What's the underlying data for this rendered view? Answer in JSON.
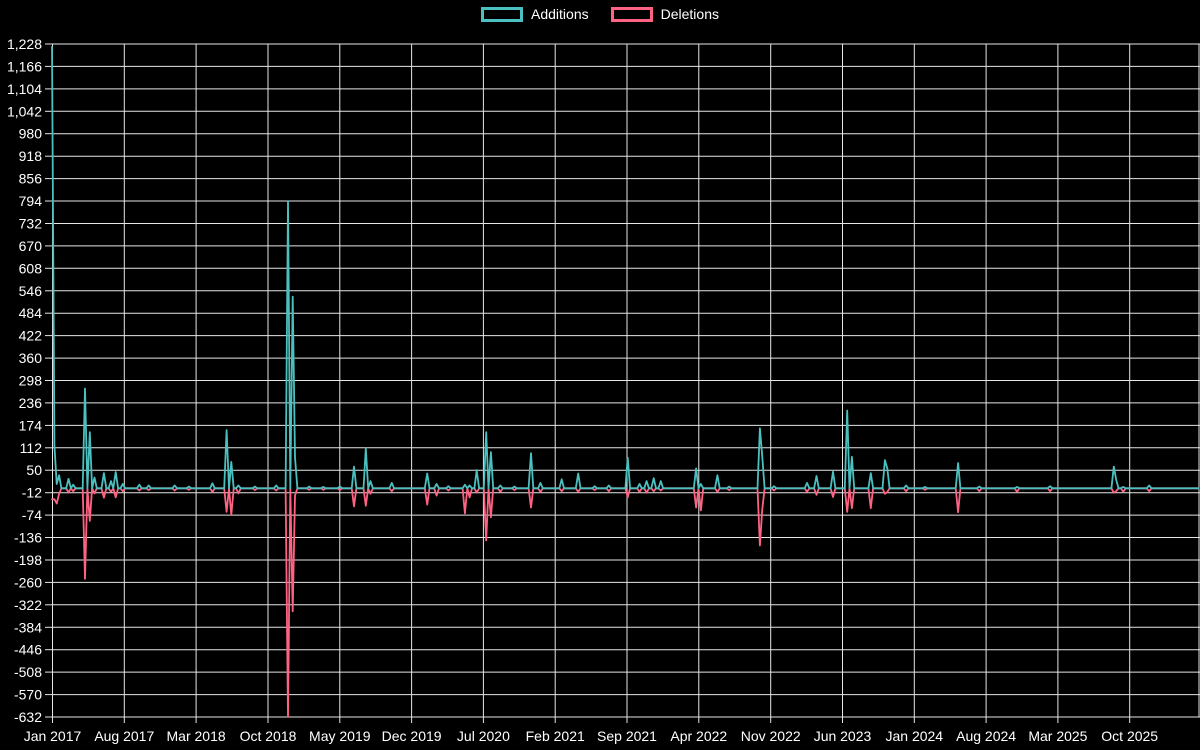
{
  "legend": {
    "items": [
      {
        "label": "Additions",
        "color": "#4bc0c0"
      },
      {
        "label": "Deletions",
        "color": "#ff6384"
      }
    ]
  },
  "colors": {
    "background": "#000000",
    "grid": "#e6e6e6",
    "text": "#ffffff",
    "additions": "#4bc0c0",
    "deletions": "#ff6384"
  },
  "chart_data": {
    "type": "line",
    "title": "",
    "xlabel": "",
    "ylabel": "",
    "legend_position": "top",
    "grid": true,
    "background": "#000000",
    "x_axis": {
      "start": "Jan 2017",
      "end": "Oct 2025",
      "label_interval_months": 7,
      "tick_labels": [
        "Jan 2017",
        "Aug 2017",
        "Mar 2018",
        "Oct 2018",
        "May 2019",
        "Dec 2019",
        "Jul 2020",
        "Feb 2021",
        "Sep 2021",
        "Apr 2022",
        "Nov 2022",
        "Jun 2023",
        "Jan 2024",
        "Aug 2024",
        "Mar 2025",
        "Oct 2025"
      ]
    },
    "y_axis": {
      "min": -632,
      "max": 1228,
      "tick_step": 62,
      "tick_labels": [
        "1,228",
        "1,166",
        "1,104",
        "1,042",
        "980",
        "918",
        "856",
        "794",
        "732",
        "670",
        "608",
        "546",
        "484",
        "422",
        "360",
        "298",
        "236",
        "174",
        "112",
        "50",
        "-12",
        "-74",
        "-136",
        "-198",
        "-260",
        "-322",
        "-384",
        "-446",
        "-508",
        "-570",
        "-632"
      ]
    },
    "baseline_value": 0,
    "events_encoding": "[months_since_Jan_2017, value]; series value is 0 between listed events (weekly commit activity)",
    "series": [
      {
        "name": "Additions",
        "color": "#4bc0c0",
        "events": [
          [
            0,
            1220
          ],
          [
            0.25,
            120
          ],
          [
            0.5,
            12
          ],
          [
            0.7,
            36
          ],
          [
            1.5,
            26
          ],
          [
            2.1,
            10
          ],
          [
            3.3,
            276
          ],
          [
            3.6,
            155
          ],
          [
            4.2,
            30
          ],
          [
            5,
            42
          ],
          [
            5.7,
            20
          ],
          [
            6.3,
            45
          ],
          [
            7,
            12
          ],
          [
            8.5,
            10
          ],
          [
            9.5,
            8
          ],
          [
            11.9,
            8
          ],
          [
            13.3,
            5
          ],
          [
            15.6,
            14
          ],
          [
            17.1,
            161
          ],
          [
            17.4,
            73
          ],
          [
            18.2,
            8
          ],
          [
            19.7,
            5
          ],
          [
            21.9,
            8
          ],
          [
            23.1,
            794
          ],
          [
            23.4,
            530
          ],
          [
            23.7,
            85
          ],
          [
            25,
            5
          ],
          [
            26.5,
            4
          ],
          [
            28,
            5
          ],
          [
            29.4,
            60
          ],
          [
            30.5,
            110
          ],
          [
            31.1,
            20
          ],
          [
            33.1,
            15
          ],
          [
            36.5,
            41
          ],
          [
            37.5,
            12
          ],
          [
            38.7,
            6
          ],
          [
            40.2,
            10
          ],
          [
            40.7,
            8
          ],
          [
            41.3,
            50
          ],
          [
            42.4,
            155
          ],
          [
            42.7,
            100
          ],
          [
            43.6,
            8
          ],
          [
            45,
            5
          ],
          [
            46.8,
            97
          ],
          [
            47.5,
            15
          ],
          [
            49.7,
            25
          ],
          [
            51.4,
            41
          ],
          [
            52.8,
            6
          ],
          [
            54.3,
            8
          ],
          [
            56.2,
            85
          ],
          [
            57.2,
            12
          ],
          [
            58,
            20
          ],
          [
            58.7,
            28
          ],
          [
            59.4,
            20
          ],
          [
            62.8,
            55
          ],
          [
            63.3,
            12
          ],
          [
            64.8,
            36
          ],
          [
            66,
            5
          ],
          [
            68.9,
            166
          ],
          [
            69.3,
            90
          ],
          [
            70.4,
            6
          ],
          [
            73.6,
            15
          ],
          [
            74.5,
            34
          ],
          [
            76.2,
            46
          ],
          [
            77.6,
            215
          ],
          [
            77.9,
            87
          ],
          [
            79.9,
            42
          ],
          [
            81.2,
            78
          ],
          [
            81.5,
            55
          ],
          [
            83.3,
            8
          ],
          [
            85,
            4
          ],
          [
            88.4,
            70
          ],
          [
            90.4,
            5
          ],
          [
            94,
            4
          ],
          [
            97.2,
            6
          ],
          [
            103.5,
            60
          ],
          [
            103.8,
            25
          ],
          [
            104.5,
            4
          ],
          [
            106.9,
            8
          ]
        ]
      },
      {
        "name": "Deletions",
        "color": "#ff6384",
        "events": [
          [
            0,
            -30
          ],
          [
            0.25,
            -30
          ],
          [
            0.5,
            -42
          ],
          [
            0.7,
            -15
          ],
          [
            1.5,
            -12
          ],
          [
            2.1,
            -8
          ],
          [
            3.3,
            -250
          ],
          [
            3.6,
            -90
          ],
          [
            4.2,
            -14
          ],
          [
            5,
            -26
          ],
          [
            5.7,
            -10
          ],
          [
            6.3,
            -25
          ],
          [
            7,
            -8
          ],
          [
            8.5,
            -6
          ],
          [
            9.5,
            -5
          ],
          [
            11.9,
            -6
          ],
          [
            13.3,
            -4
          ],
          [
            15.6,
            -10
          ],
          [
            17.1,
            -65
          ],
          [
            17.4,
            -74
          ],
          [
            18.2,
            -14
          ],
          [
            19.7,
            -5
          ],
          [
            21.9,
            -6
          ],
          [
            23.1,
            -632
          ],
          [
            23.4,
            -340
          ],
          [
            23.7,
            -20
          ],
          [
            25,
            -4
          ],
          [
            26.5,
            -4
          ],
          [
            28,
            -5
          ],
          [
            29.4,
            -50
          ],
          [
            30.5,
            -48
          ],
          [
            31.1,
            -15
          ],
          [
            33.1,
            -8
          ],
          [
            36.5,
            -45
          ],
          [
            37.5,
            -20
          ],
          [
            38.7,
            -6
          ],
          [
            40.2,
            -69
          ],
          [
            40.7,
            -25
          ],
          [
            41.3,
            -12
          ],
          [
            42.4,
            -144
          ],
          [
            42.7,
            -80
          ],
          [
            43.6,
            -10
          ],
          [
            45,
            -5
          ],
          [
            46.8,
            -53
          ],
          [
            47.5,
            -10
          ],
          [
            49.7,
            -8
          ],
          [
            51.4,
            -10
          ],
          [
            52.8,
            -5
          ],
          [
            54.3,
            -8
          ],
          [
            56.2,
            -25
          ],
          [
            57.2,
            -10
          ],
          [
            58,
            -12
          ],
          [
            58.7,
            -8
          ],
          [
            59.4,
            -6
          ],
          [
            62.8,
            -53
          ],
          [
            63.3,
            -61
          ],
          [
            64.8,
            -10
          ],
          [
            66,
            -5
          ],
          [
            68.9,
            -158
          ],
          [
            69.3,
            -60
          ],
          [
            70.4,
            -6
          ],
          [
            73.6,
            -10
          ],
          [
            74.5,
            -18
          ],
          [
            76.2,
            -24
          ],
          [
            77.6,
            -65
          ],
          [
            77.9,
            -55
          ],
          [
            79.9,
            -55
          ],
          [
            81.2,
            -15
          ],
          [
            81.5,
            -10
          ],
          [
            83.3,
            -8
          ],
          [
            85,
            -4
          ],
          [
            88.4,
            -66
          ],
          [
            90.4,
            -8
          ],
          [
            94,
            -10
          ],
          [
            97.2,
            -8
          ],
          [
            103.5,
            -12
          ],
          [
            103.8,
            -8
          ],
          [
            104.5,
            -10
          ],
          [
            106.9,
            -8
          ]
        ]
      }
    ]
  }
}
